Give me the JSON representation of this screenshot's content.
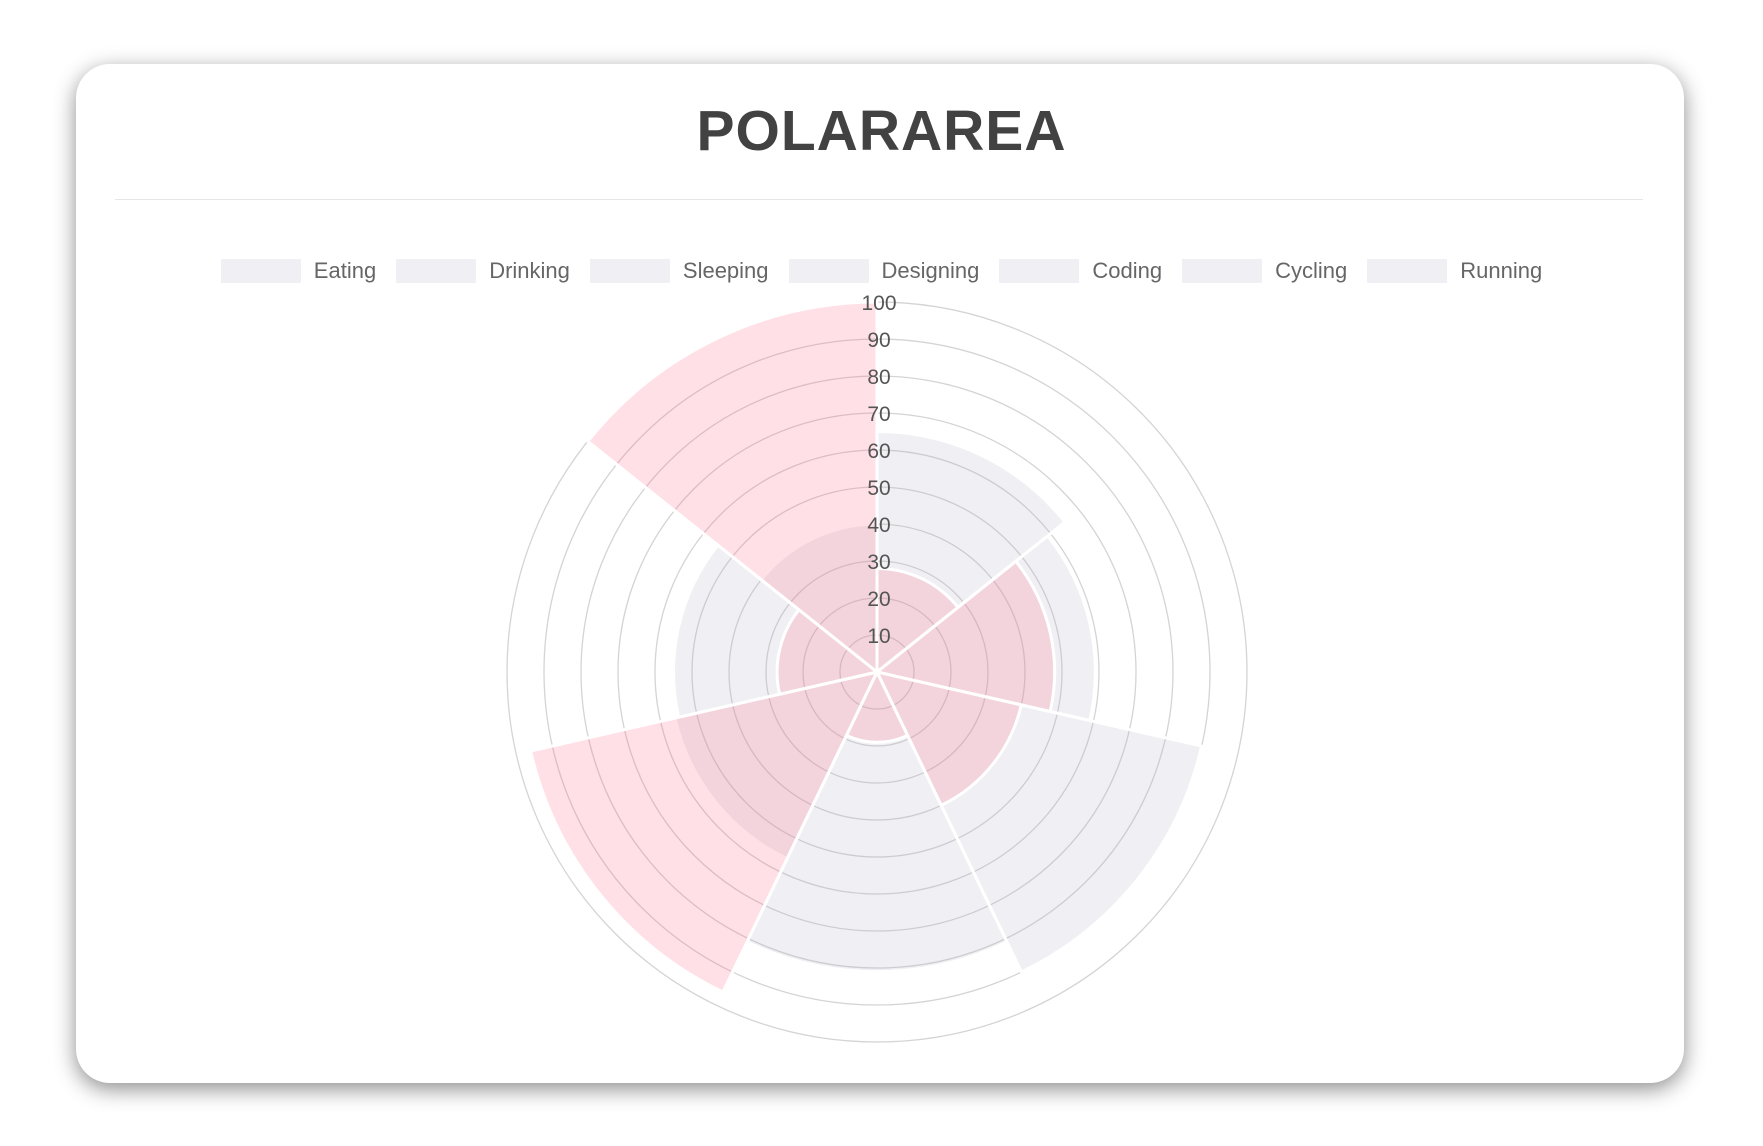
{
  "header": {
    "title": "POLARAREA"
  },
  "chart_data": {
    "type": "polarArea",
    "title": "POLARAREA",
    "labels": [
      "Eating",
      "Drinking",
      "Sleeping",
      "Designing",
      "Coding",
      "Cycling",
      "Running"
    ],
    "series": [
      {
        "values": [
          65,
          59,
          90,
          81,
          56,
          55,
          40
        ],
        "color": "rgba(179,181,198,0.2)"
      },
      {
        "values": [
          28,
          48,
          40,
          19,
          96,
          27,
          100
        ],
        "color": "rgba(255,99,132,0.2)"
      }
    ],
    "r_range": [
      0,
      100
    ],
    "ticks": [
      "10",
      "20",
      "30",
      "40",
      "50",
      "60",
      "70",
      "80",
      "90",
      "100"
    ],
    "legend_position": "top",
    "grid": true
  }
}
